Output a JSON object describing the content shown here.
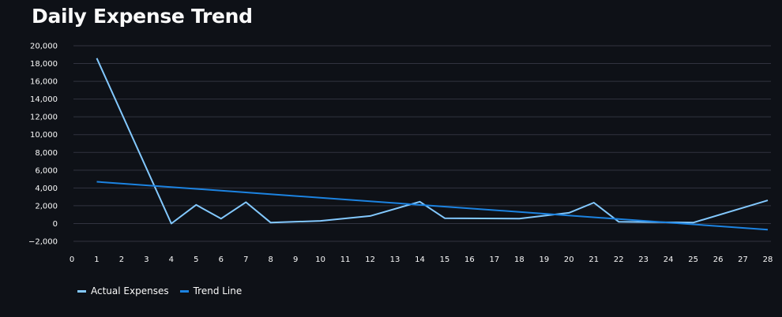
{
  "page": {
    "title": "Daily Expense Trend"
  },
  "chart_data": {
    "type": "line",
    "title": "Daily Expense Trend",
    "xlabel": "",
    "ylabel": "",
    "xlim": [
      0,
      28
    ],
    "ylim": [
      -2000,
      20000
    ],
    "x_ticks": [
      0,
      1,
      2,
      3,
      4,
      5,
      6,
      7,
      8,
      9,
      10,
      11,
      12,
      13,
      14,
      15,
      16,
      17,
      18,
      19,
      20,
      21,
      22,
      23,
      24,
      25,
      26,
      27,
      28
    ],
    "y_ticks": [
      -2000,
      0,
      2000,
      4000,
      6000,
      8000,
      10000,
      12000,
      14000,
      16000,
      18000,
      20000
    ],
    "y_tick_labels": [
      "−2,000",
      "0",
      "2,000",
      "4,000",
      "6,000",
      "8,000",
      "10,000",
      "12,000",
      "14,000",
      "16,000",
      "18,000",
      "20,000"
    ],
    "grid": "horizontal",
    "legend": "bottom-left",
    "series": [
      {
        "name": "Actual Expenses",
        "color": "#83c9ff",
        "x": [
          1,
          4,
          5,
          6,
          7,
          8,
          10,
          12,
          14,
          15,
          18,
          20,
          21,
          22,
          25,
          28
        ],
        "values": [
          18600,
          0,
          2100,
          550,
          2400,
          100,
          300,
          850,
          2450,
          600,
          550,
          1200,
          2350,
          200,
          100,
          2600
        ]
      },
      {
        "name": "Trend Line",
        "color": "#1c83e1",
        "x": [
          1,
          28
        ],
        "values": [
          4700,
          -700
        ]
      }
    ]
  }
}
